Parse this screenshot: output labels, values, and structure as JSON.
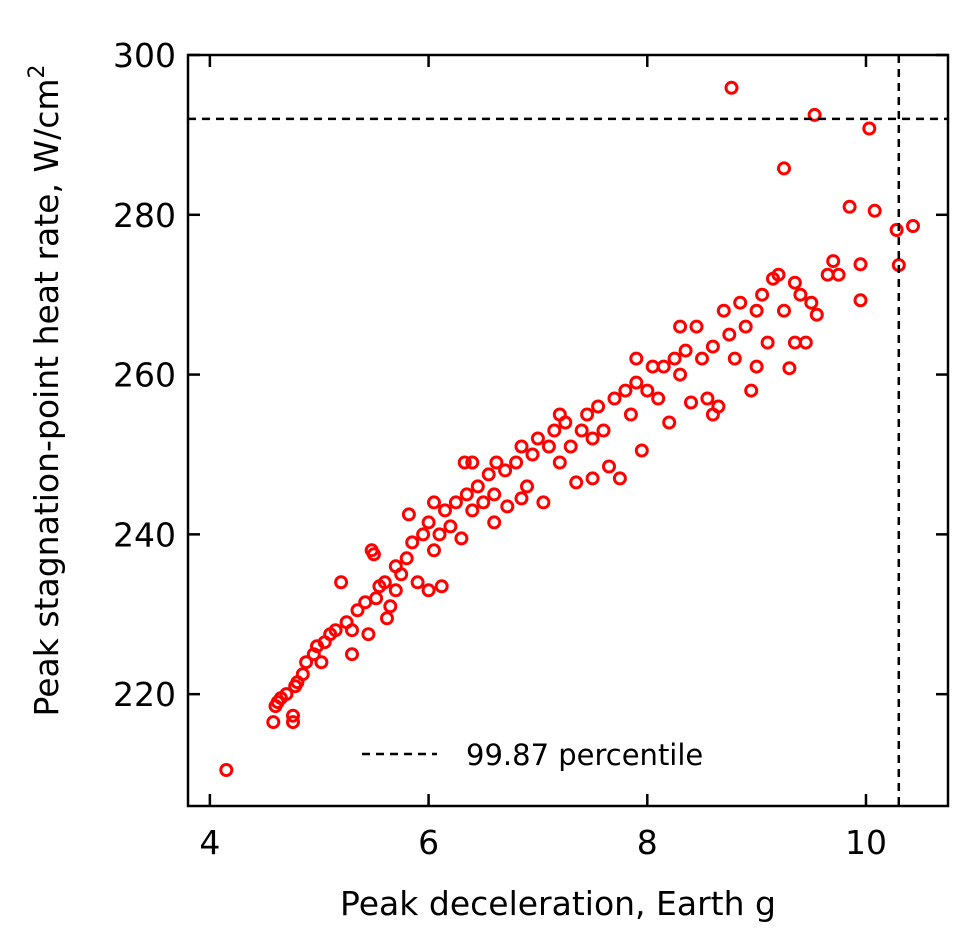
{
  "chart_data": {
    "type": "scatter",
    "title": "",
    "xlabel": "Peak deceleration, Earth g",
    "ylabel": "Peak stagnation-point heat rate, W/cm",
    "ylabel_superscript": "2",
    "xlim": [
      3.8,
      10.75
    ],
    "ylim": [
      206,
      300
    ],
    "xticks": [
      4,
      6,
      8,
      10
    ],
    "yticks": [
      220,
      240,
      260,
      280,
      300
    ],
    "x_tick_labels": [
      "4",
      "6",
      "8",
      "10"
    ],
    "y_tick_labels": [
      "220",
      "240",
      "260",
      "280",
      "300"
    ],
    "grid": false,
    "legend": {
      "placement": "bottom-center",
      "entries": [
        "99.87 percentile"
      ]
    },
    "marker_color": "#ff0000",
    "line_color": "#000000",
    "reference_lines": {
      "x": 10.3,
      "y": 292,
      "style": "dashed",
      "label": "99.87 percentile"
    },
    "series": [
      {
        "marker": "hollow-circle",
        "points": [
          [
            4.15,
            210.5
          ],
          [
            4.58,
            216.5
          ],
          [
            4.6,
            218.5
          ],
          [
            4.62,
            219
          ],
          [
            4.65,
            219.5
          ],
          [
            4.7,
            220
          ],
          [
            4.76,
            217.3
          ],
          [
            4.76,
            216.5
          ],
          [
            4.78,
            221
          ],
          [
            4.8,
            221.5
          ],
          [
            4.85,
            222.5
          ],
          [
            4.88,
            224
          ],
          [
            4.95,
            225
          ],
          [
            4.98,
            226
          ],
          [
            5.02,
            224
          ],
          [
            5.05,
            226.5
          ],
          [
            5.1,
            227.5
          ],
          [
            5.15,
            228
          ],
          [
            5.2,
            234
          ],
          [
            5.25,
            229
          ],
          [
            5.3,
            228
          ],
          [
            5.3,
            225
          ],
          [
            5.35,
            230.5
          ],
          [
            5.42,
            231.5
          ],
          [
            5.45,
            227.5
          ],
          [
            5.48,
            238
          ],
          [
            5.52,
            232
          ],
          [
            5.55,
            233.5
          ],
          [
            5.6,
            234
          ],
          [
            5.62,
            229.5
          ],
          [
            5.65,
            231
          ],
          [
            5.7,
            236
          ],
          [
            5.75,
            235
          ],
          [
            5.8,
            237
          ],
          [
            5.82,
            242.5
          ],
          [
            5.85,
            239
          ],
          [
            5.9,
            234
          ],
          [
            5.95,
            240
          ],
          [
            6.0,
            233
          ],
          [
            6.0,
            241.5
          ],
          [
            6.05,
            238
          ],
          [
            6.1,
            240
          ],
          [
            6.15,
            243
          ],
          [
            6.12,
            233.5
          ],
          [
            6.2,
            241
          ],
          [
            6.25,
            244
          ],
          [
            6.3,
            239.5
          ],
          [
            6.33,
            249
          ],
          [
            6.35,
            245
          ],
          [
            6.4,
            243
          ],
          [
            6.45,
            246
          ],
          [
            6.5,
            244
          ],
          [
            6.55,
            247.5
          ],
          [
            6.6,
            245
          ],
          [
            6.6,
            241.5
          ],
          [
            6.62,
            249
          ],
          [
            6.7,
            248
          ],
          [
            6.72,
            243.5
          ],
          [
            6.8,
            249
          ],
          [
            6.85,
            251
          ],
          [
            6.9,
            246
          ],
          [
            6.95,
            250
          ],
          [
            7.0,
            252
          ],
          [
            7.05,
            244
          ],
          [
            7.1,
            251
          ],
          [
            7.15,
            253
          ],
          [
            7.2,
            249
          ],
          [
            7.25,
            254
          ],
          [
            7.3,
            251
          ],
          [
            7.35,
            246.5
          ],
          [
            7.4,
            253
          ],
          [
            7.45,
            255
          ],
          [
            7.5,
            252
          ],
          [
            7.55,
            256
          ],
          [
            7.6,
            253
          ],
          [
            7.65,
            248.5
          ],
          [
            7.7,
            257
          ],
          [
            7.75,
            247
          ],
          [
            7.8,
            258
          ],
          [
            7.85,
            255
          ],
          [
            7.9,
            259
          ],
          [
            7.95,
            250.5
          ],
          [
            8.0,
            258
          ],
          [
            8.05,
            261
          ],
          [
            8.1,
            257
          ],
          [
            8.15,
            261
          ],
          [
            8.2,
            254
          ],
          [
            8.25,
            262
          ],
          [
            8.3,
            260
          ],
          [
            8.35,
            263
          ],
          [
            8.4,
            256.5
          ],
          [
            8.45,
            266
          ],
          [
            8.5,
            262
          ],
          [
            8.55,
            257
          ],
          [
            8.6,
            263.5
          ],
          [
            8.65,
            256
          ],
          [
            8.7,
            268
          ],
          [
            8.75,
            265
          ],
          [
            8.8,
            262
          ],
          [
            8.85,
            269
          ],
          [
            8.9,
            266
          ],
          [
            8.95,
            258
          ],
          [
            9.0,
            268
          ],
          [
            9.05,
            270
          ],
          [
            9.1,
            264
          ],
          [
            9.15,
            272
          ],
          [
            9.2,
            272.5
          ],
          [
            9.25,
            268
          ],
          [
            9.3,
            260.8
          ],
          [
            9.35,
            271.5
          ],
          [
            9.4,
            270
          ],
          [
            9.45,
            264
          ],
          [
            9.5,
            269
          ],
          [
            9.55,
            267.5
          ],
          [
            9.65,
            272.5
          ],
          [
            9.7,
            274.2
          ],
          [
            9.75,
            272.5
          ],
          [
            9.95,
            273.8
          ],
          [
            9.95,
            269.3
          ],
          [
            10.3,
            273.7
          ],
          [
            10.28,
            278.1
          ],
          [
            10.43,
            278.6
          ],
          [
            10.08,
            280.5
          ],
          [
            9.85,
            281
          ],
          [
            9.25,
            285.8
          ],
          [
            8.77,
            295.9
          ],
          [
            9.53,
            292.5
          ],
          [
            10.03,
            290.8
          ],
          [
            5.5,
            237.5
          ],
          [
            5.7,
            233
          ],
          [
            6.05,
            244
          ],
          [
            6.4,
            249
          ],
          [
            6.85,
            244.5
          ],
          [
            7.2,
            255
          ],
          [
            7.5,
            247
          ],
          [
            7.9,
            262
          ],
          [
            8.3,
            266
          ],
          [
            8.6,
            255
          ],
          [
            9.0,
            261
          ],
          [
            9.35,
            264
          ]
        ]
      }
    ]
  }
}
